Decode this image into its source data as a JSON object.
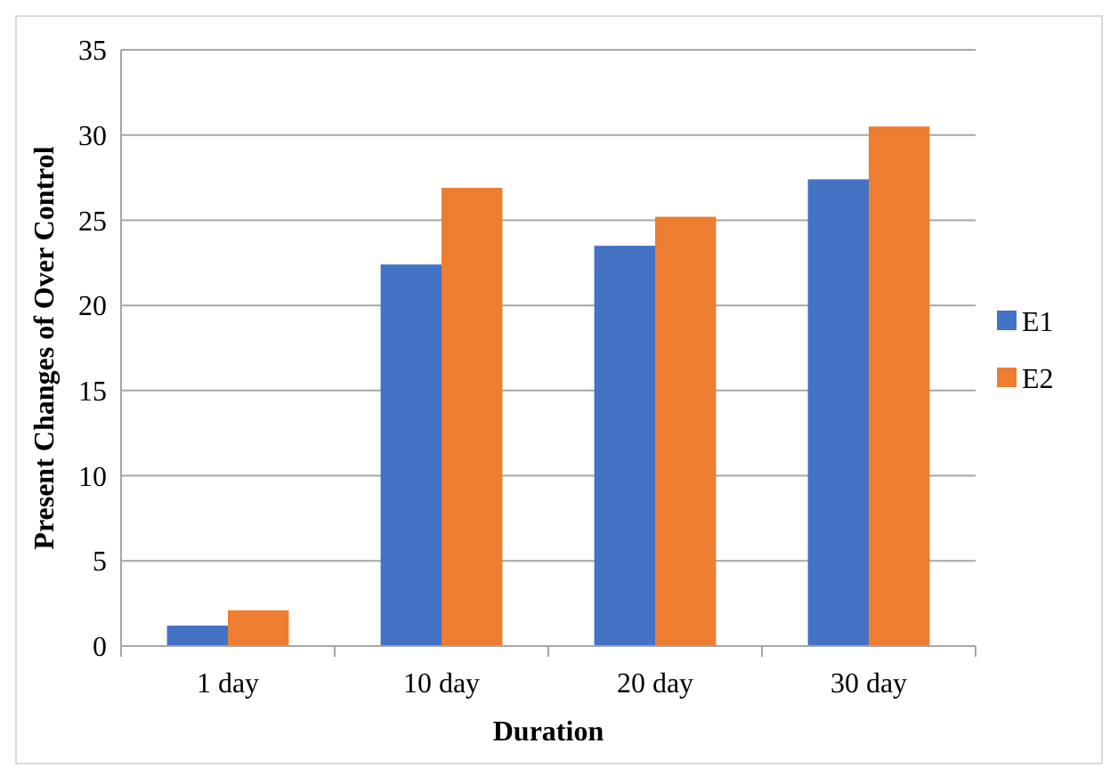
{
  "chart_data": {
    "type": "bar",
    "xlabel": "Duration",
    "ylabel": "Present Changes of Over Control",
    "categories": [
      "1 day",
      "10 day",
      "20 day",
      "30 day"
    ],
    "series": [
      {
        "name": "E1",
        "color": "#4472c4",
        "values": [
          1.2,
          22.4,
          23.5,
          27.4
        ]
      },
      {
        "name": "E2",
        "color": "#ed7d31",
        "values": [
          2.1,
          26.9,
          25.2,
          30.5
        ]
      }
    ],
    "ylim": [
      0,
      35
    ],
    "yticks": [
      0,
      5,
      10,
      15,
      20,
      25,
      30,
      35
    ],
    "grid": "y",
    "legend": "right"
  }
}
